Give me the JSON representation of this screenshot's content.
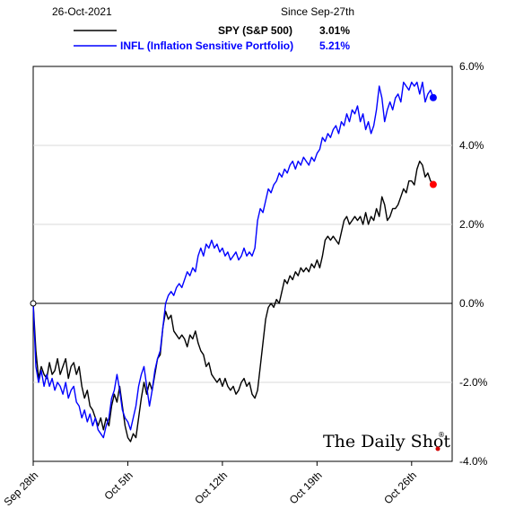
{
  "header": {
    "date": "26-Oct-2021",
    "since": "Since Sep-27th"
  },
  "brand": {
    "name": "The Daily Shot",
    "mark": "®"
  },
  "chart_data": {
    "type": "line",
    "title": "",
    "ylim": [
      -4.0,
      6.0
    ],
    "grid": "horizontal",
    "legend_placement": "top",
    "y_ticks": [
      "6.0%",
      "4.0%",
      "2.0%",
      "0.0%",
      "-2.0%",
      "-4.0%"
    ],
    "x_ticks": [
      {
        "label": "Sep 28th",
        "day": 1
      },
      {
        "label": "Oct 5th",
        "day": 8
      },
      {
        "label": "Oct 12th",
        "day": 15
      },
      {
        "label": "Oct 19th",
        "day": 22
      },
      {
        "label": "Oct 26th",
        "day": 29
      }
    ],
    "x_range": [
      1,
      32
    ],
    "series": [
      {
        "name": "SPY (S&P 500)",
        "value_label": "3.01%",
        "color": "#000000",
        "end_marker_color": "#ff0000",
        "points": [
          [
            1.0,
            0.0
          ],
          [
            1.2,
            -1.2
          ],
          [
            1.4,
            -1.9
          ],
          [
            1.6,
            -1.6
          ],
          [
            1.8,
            -1.8
          ],
          [
            2.0,
            -1.9
          ],
          [
            2.2,
            -1.5
          ],
          [
            2.4,
            -1.8
          ],
          [
            2.6,
            -1.7
          ],
          [
            2.8,
            -1.4
          ],
          [
            3.0,
            -1.8
          ],
          [
            3.2,
            -1.6
          ],
          [
            3.4,
            -1.4
          ],
          [
            3.6,
            -1.9
          ],
          [
            3.8,
            -1.6
          ],
          [
            4.0,
            -1.5
          ],
          [
            4.2,
            -1.8
          ],
          [
            4.4,
            -1.6
          ],
          [
            4.6,
            -2.1
          ],
          [
            4.8,
            -2.4
          ],
          [
            5.0,
            -2.2
          ],
          [
            5.2,
            -2.6
          ],
          [
            5.4,
            -2.7
          ],
          [
            5.6,
            -2.9
          ],
          [
            5.8,
            -3.1
          ],
          [
            6.0,
            -2.9
          ],
          [
            6.2,
            -3.2
          ],
          [
            6.4,
            -2.9
          ],
          [
            6.6,
            -3.1
          ],
          [
            6.8,
            -2.6
          ],
          [
            7.0,
            -2.3
          ],
          [
            7.2,
            -2.5
          ],
          [
            7.4,
            -2.1
          ],
          [
            7.6,
            -2.6
          ],
          [
            7.8,
            -3.1
          ],
          [
            8.0,
            -3.4
          ],
          [
            8.2,
            -3.5
          ],
          [
            8.4,
            -3.3
          ],
          [
            8.6,
            -3.4
          ],
          [
            8.8,
            -2.9
          ],
          [
            9.0,
            -2.4
          ],
          [
            9.2,
            -2.0
          ],
          [
            9.4,
            -2.3
          ],
          [
            9.6,
            -2.0
          ],
          [
            9.8,
            -2.2
          ],
          [
            10.0,
            -1.8
          ],
          [
            10.2,
            -1.4
          ],
          [
            10.4,
            -1.3
          ],
          [
            10.6,
            -0.6
          ],
          [
            10.8,
            -0.2
          ],
          [
            11.0,
            -0.4
          ],
          [
            11.2,
            -0.3
          ],
          [
            11.4,
            -0.7
          ],
          [
            11.6,
            -0.8
          ],
          [
            11.8,
            -0.9
          ],
          [
            12.0,
            -0.8
          ],
          [
            12.2,
            -0.9
          ],
          [
            12.4,
            -1.1
          ],
          [
            12.6,
            -0.8
          ],
          [
            12.8,
            -0.9
          ],
          [
            13.0,
            -0.7
          ],
          [
            13.2,
            -1.0
          ],
          [
            13.4,
            -1.2
          ],
          [
            13.6,
            -1.3
          ],
          [
            13.8,
            -1.6
          ],
          [
            14.0,
            -1.5
          ],
          [
            14.2,
            -1.8
          ],
          [
            14.4,
            -1.9
          ],
          [
            14.6,
            -2.0
          ],
          [
            14.8,
            -1.9
          ],
          [
            15.0,
            -2.1
          ],
          [
            15.2,
            -1.9
          ],
          [
            15.4,
            -2.1
          ],
          [
            15.6,
            -2.2
          ],
          [
            15.8,
            -2.1
          ],
          [
            16.0,
            -2.3
          ],
          [
            16.2,
            -2.2
          ],
          [
            16.4,
            -2.0
          ],
          [
            16.6,
            -1.9
          ],
          [
            16.8,
            -2.1
          ],
          [
            17.0,
            -2.0
          ],
          [
            17.2,
            -2.3
          ],
          [
            17.4,
            -2.4
          ],
          [
            17.6,
            -2.2
          ],
          [
            17.8,
            -1.6
          ],
          [
            18.0,
            -1.0
          ],
          [
            18.2,
            -0.4
          ],
          [
            18.4,
            -0.1
          ],
          [
            18.6,
            0.0
          ],
          [
            18.8,
            -0.1
          ],
          [
            19.0,
            0.1
          ],
          [
            19.2,
            0.0
          ],
          [
            19.4,
            0.3
          ],
          [
            19.6,
            0.6
          ],
          [
            19.8,
            0.5
          ],
          [
            20.0,
            0.7
          ],
          [
            20.2,
            0.6
          ],
          [
            20.4,
            0.8
          ],
          [
            20.6,
            0.7
          ],
          [
            20.8,
            0.9
          ],
          [
            21.0,
            0.8
          ],
          [
            21.2,
            0.9
          ],
          [
            21.4,
            0.8
          ],
          [
            21.6,
            1.0
          ],
          [
            21.8,
            0.9
          ],
          [
            22.0,
            1.1
          ],
          [
            22.2,
            0.9
          ],
          [
            22.4,
            1.2
          ],
          [
            22.6,
            1.6
          ],
          [
            22.8,
            1.7
          ],
          [
            23.0,
            1.6
          ],
          [
            23.2,
            1.7
          ],
          [
            23.4,
            1.6
          ],
          [
            23.6,
            1.5
          ],
          [
            23.8,
            1.8
          ],
          [
            24.0,
            2.1
          ],
          [
            24.2,
            2.2
          ],
          [
            24.4,
            2.0
          ],
          [
            24.6,
            2.1
          ],
          [
            24.8,
            2.2
          ],
          [
            25.0,
            2.1
          ],
          [
            25.2,
            2.2
          ],
          [
            25.4,
            2.0
          ],
          [
            25.6,
            2.3
          ],
          [
            25.8,
            2.0
          ],
          [
            26.0,
            2.2
          ],
          [
            26.2,
            2.1
          ],
          [
            26.4,
            2.4
          ],
          [
            26.6,
            2.2
          ],
          [
            26.8,
            2.7
          ],
          [
            27.0,
            2.5
          ],
          [
            27.2,
            2.1
          ],
          [
            27.4,
            2.2
          ],
          [
            27.6,
            2.4
          ],
          [
            27.8,
            2.4
          ],
          [
            28.0,
            2.5
          ],
          [
            28.2,
            2.7
          ],
          [
            28.4,
            2.9
          ],
          [
            28.6,
            2.8
          ],
          [
            28.8,
            3.1
          ],
          [
            29.0,
            3.1
          ],
          [
            29.2,
            3.0
          ],
          [
            29.4,
            3.4
          ],
          [
            29.6,
            3.6
          ],
          [
            29.8,
            3.5
          ],
          [
            30.0,
            3.2
          ],
          [
            30.2,
            3.3
          ],
          [
            30.4,
            3.1
          ],
          [
            30.6,
            3.01
          ]
        ]
      },
      {
        "name": "INFL (Inflation Sensitive Portfolio)",
        "value_label": "5.21%",
        "color": "#0000ff",
        "end_marker_color": "#0000ff",
        "points": [
          [
            1.0,
            0.0
          ],
          [
            1.2,
            -1.6
          ],
          [
            1.4,
            -2.0
          ],
          [
            1.6,
            -1.7
          ],
          [
            1.8,
            -2.1
          ],
          [
            2.0,
            -1.8
          ],
          [
            2.2,
            -2.1
          ],
          [
            2.4,
            -1.9
          ],
          [
            2.6,
            -2.2
          ],
          [
            2.8,
            -2.0
          ],
          [
            3.0,
            -2.1
          ],
          [
            3.2,
            -2.3
          ],
          [
            3.4,
            -2.0
          ],
          [
            3.6,
            -2.4
          ],
          [
            3.8,
            -2.2
          ],
          [
            4.0,
            -2.1
          ],
          [
            4.2,
            -2.5
          ],
          [
            4.4,
            -2.6
          ],
          [
            4.6,
            -2.9
          ],
          [
            4.8,
            -2.7
          ],
          [
            5.0,
            -3.0
          ],
          [
            5.2,
            -2.8
          ],
          [
            5.4,
            -3.1
          ],
          [
            5.6,
            -2.9
          ],
          [
            5.8,
            -3.2
          ],
          [
            6.0,
            -3.3
          ],
          [
            6.2,
            -3.4
          ],
          [
            6.4,
            -3.1
          ],
          [
            6.6,
            -2.9
          ],
          [
            6.8,
            -2.4
          ],
          [
            7.0,
            -2.2
          ],
          [
            7.2,
            -1.8
          ],
          [
            7.4,
            -2.2
          ],
          [
            7.6,
            -2.7
          ],
          [
            7.8,
            -2.9
          ],
          [
            8.0,
            -3.0
          ],
          [
            8.2,
            -3.2
          ],
          [
            8.4,
            -2.9
          ],
          [
            8.6,
            -2.6
          ],
          [
            8.8,
            -2.1
          ],
          [
            9.0,
            -1.8
          ],
          [
            9.2,
            -1.6
          ],
          [
            9.4,
            -2.1
          ],
          [
            9.6,
            -2.6
          ],
          [
            9.8,
            -2.2
          ],
          [
            10.0,
            -1.7
          ],
          [
            10.2,
            -1.4
          ],
          [
            10.4,
            -1.2
          ],
          [
            10.6,
            -0.6
          ],
          [
            10.8,
            0.0
          ],
          [
            11.0,
            0.2
          ],
          [
            11.2,
            0.3
          ],
          [
            11.4,
            0.2
          ],
          [
            11.6,
            0.4
          ],
          [
            11.8,
            0.5
          ],
          [
            12.0,
            0.4
          ],
          [
            12.2,
            0.6
          ],
          [
            12.4,
            0.8
          ],
          [
            12.6,
            0.7
          ],
          [
            12.8,
            0.9
          ],
          [
            13.0,
            0.8
          ],
          [
            13.2,
            1.2
          ],
          [
            13.4,
            1.4
          ],
          [
            13.6,
            1.2
          ],
          [
            13.8,
            1.5
          ],
          [
            14.0,
            1.4
          ],
          [
            14.2,
            1.6
          ],
          [
            14.4,
            1.4
          ],
          [
            14.6,
            1.5
          ],
          [
            14.8,
            1.3
          ],
          [
            15.0,
            1.4
          ],
          [
            15.2,
            1.2
          ],
          [
            15.4,
            1.3
          ],
          [
            15.6,
            1.1
          ],
          [
            15.8,
            1.2
          ],
          [
            16.0,
            1.3
          ],
          [
            16.2,
            1.1
          ],
          [
            16.4,
            1.2
          ],
          [
            16.6,
            1.4
          ],
          [
            16.8,
            1.2
          ],
          [
            17.0,
            1.3
          ],
          [
            17.2,
            1.2
          ],
          [
            17.4,
            1.4
          ],
          [
            17.6,
            2.1
          ],
          [
            17.8,
            2.4
          ],
          [
            18.0,
            2.3
          ],
          [
            18.2,
            2.6
          ],
          [
            18.4,
            2.9
          ],
          [
            18.6,
            2.8
          ],
          [
            18.8,
            3.0
          ],
          [
            19.0,
            3.1
          ],
          [
            19.2,
            3.3
          ],
          [
            19.4,
            3.2
          ],
          [
            19.6,
            3.4
          ],
          [
            19.8,
            3.3
          ],
          [
            20.0,
            3.5
          ],
          [
            20.2,
            3.6
          ],
          [
            20.4,
            3.4
          ],
          [
            20.6,
            3.6
          ],
          [
            20.8,
            3.5
          ],
          [
            21.0,
            3.7
          ],
          [
            21.2,
            3.6
          ],
          [
            21.4,
            3.5
          ],
          [
            21.6,
            3.7
          ],
          [
            21.8,
            3.6
          ],
          [
            22.0,
            3.8
          ],
          [
            22.2,
            3.9
          ],
          [
            22.4,
            4.2
          ],
          [
            22.6,
            4.1
          ],
          [
            22.8,
            4.3
          ],
          [
            23.0,
            4.2
          ],
          [
            23.2,
            4.4
          ],
          [
            23.4,
            4.5
          ],
          [
            23.6,
            4.3
          ],
          [
            23.8,
            4.6
          ],
          [
            24.0,
            4.5
          ],
          [
            24.2,
            4.8
          ],
          [
            24.4,
            4.6
          ],
          [
            24.6,
            4.9
          ],
          [
            24.8,
            4.8
          ],
          [
            25.0,
            5.0
          ],
          [
            25.2,
            4.6
          ],
          [
            25.4,
            4.8
          ],
          [
            25.6,
            4.4
          ],
          [
            25.8,
            4.6
          ],
          [
            26.0,
            4.3
          ],
          [
            26.2,
            4.5
          ],
          [
            26.4,
            4.9
          ],
          [
            26.6,
            5.5
          ],
          [
            26.8,
            5.2
          ],
          [
            27.0,
            4.6
          ],
          [
            27.2,
            4.9
          ],
          [
            27.4,
            5.1
          ],
          [
            27.6,
            4.9
          ],
          [
            27.8,
            5.2
          ],
          [
            28.0,
            5.3
          ],
          [
            28.2,
            5.1
          ],
          [
            28.4,
            5.6
          ],
          [
            28.6,
            5.5
          ],
          [
            28.8,
            5.4
          ],
          [
            29.0,
            5.6
          ],
          [
            29.2,
            5.5
          ],
          [
            29.4,
            5.6
          ],
          [
            29.6,
            5.3
          ],
          [
            29.8,
            5.6
          ],
          [
            30.0,
            5.1
          ],
          [
            30.2,
            5.3
          ],
          [
            30.4,
            5.4
          ],
          [
            30.6,
            5.21
          ]
        ]
      }
    ]
  }
}
